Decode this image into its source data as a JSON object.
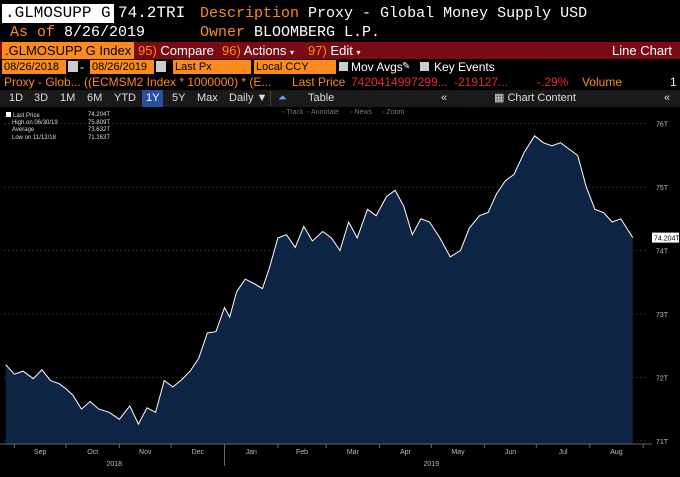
{
  "header": {
    "ticker": ".GLMOSUPP G",
    "last_value": "74.2TRI",
    "description_label": "Description",
    "description": "Proxy - Global Money Supply USD",
    "asof_label": "As of",
    "asof": "8/26/2019",
    "owner_label": "Owner",
    "owner": "BLOOMBERG L.P."
  },
  "toolbar": {
    "security": ".GLMOSUPP G Index",
    "compare_num": "95)",
    "compare": "Compare",
    "actions_num": "96)",
    "actions": "Actions",
    "edit_num": "97)",
    "edit": "Edit",
    "chart_type": "Line Chart"
  },
  "settings": {
    "start_date": "08/26/2018",
    "end_date": "08/26/2019",
    "price_field": "Last Px",
    "currency": "Local CCY",
    "mov_avgs": "Mov Avgs",
    "key_events": "Key Events"
  },
  "legend_row": {
    "name": "Proxy - Glob...",
    "formula": "((ECMSM2 Index * 1000000) * (E...",
    "last_price_label": "Last Price",
    "last_price": "7420414997299...",
    "change": "-219127...",
    "pct_change": "-.29%",
    "volume_label": "Volume",
    "volume": "1"
  },
  "periods": [
    "1D",
    "3D",
    "1M",
    "6M",
    "YTD",
    "1Y",
    "5Y",
    "Max"
  ],
  "selected_period": "1Y",
  "frequency": "Daily",
  "table_label": "Table",
  "chart_content_label": "Chart Content",
  "chart_tools": {
    "track": "Track",
    "annotate": "Annotate",
    "news": "News",
    "zoom": "Zoom"
  },
  "chart_legend": {
    "last_price_label": "Last Price",
    "last_price": "74.204T",
    "high_label": "High on 06/30/19",
    "high": "75.809T",
    "average_label": "Average",
    "average": "73.632T",
    "low_label": "Low on 11/12/18",
    "low": "71.263T"
  },
  "colors": {
    "orange": "#fb8b1e",
    "dark_red": "#7a0a14",
    "area_fill": "#0e2444",
    "line": "#ffffff"
  },
  "chart_data": {
    "type": "area",
    "series": [
      {
        "name": "Last Price",
        "x": [
          "2018-08-27",
          "2018-09-01",
          "2018-09-06",
          "2018-09-12",
          "2018-09-17",
          "2018-09-22",
          "2018-09-27",
          "2018-10-01",
          "2018-10-05",
          "2018-10-10",
          "2018-10-15",
          "2018-10-20",
          "2018-10-26",
          "2018-11-01",
          "2018-11-07",
          "2018-11-12",
          "2018-11-17",
          "2018-11-22",
          "2018-11-27",
          "2018-12-02",
          "2018-12-07",
          "2018-12-12",
          "2018-12-17",
          "2018-12-22",
          "2018-12-27",
          "2019-01-01",
          "2019-01-04",
          "2019-01-08",
          "2019-01-13",
          "2019-01-18",
          "2019-01-23",
          "2019-01-27",
          "2019-02-01",
          "2019-02-06",
          "2019-02-11",
          "2019-02-16",
          "2019-02-21",
          "2019-02-27",
          "2019-03-04",
          "2019-03-09",
          "2019-03-14",
          "2019-03-19",
          "2019-03-25",
          "2019-03-30",
          "2019-04-05",
          "2019-04-10",
          "2019-04-15",
          "2019-04-20",
          "2019-04-25",
          "2019-04-30",
          "2019-05-06",
          "2019-05-12",
          "2019-05-18",
          "2019-05-23",
          "2019-05-29",
          "2019-06-03",
          "2019-06-08",
          "2019-06-13",
          "2019-06-18",
          "2019-06-24",
          "2019-06-30",
          "2019-07-05",
          "2019-07-10",
          "2019-07-15",
          "2019-07-20",
          "2019-07-25",
          "2019-07-30",
          "2019-08-04",
          "2019-08-09",
          "2019-08-14",
          "2019-08-19",
          "2019-08-26"
        ],
        "values": [
          72.2,
          72.05,
          72.1,
          71.98,
          72.12,
          71.95,
          71.9,
          71.82,
          71.72,
          71.5,
          71.62,
          71.5,
          71.45,
          71.34,
          71.55,
          71.263,
          71.52,
          71.45,
          71.95,
          71.85,
          71.96,
          72.1,
          72.3,
          72.7,
          72.72,
          73.1,
          72.95,
          73.35,
          73.55,
          73.48,
          73.4,
          73.72,
          74.2,
          74.25,
          74.05,
          74.38,
          74.15,
          74.3,
          74.2,
          74.0,
          74.45,
          74.2,
          74.65,
          74.55,
          74.85,
          74.95,
          74.7,
          74.25,
          74.5,
          74.45,
          74.2,
          73.9,
          74.0,
          74.35,
          74.55,
          74.6,
          74.9,
          75.1,
          75.2,
          75.55,
          75.809,
          75.7,
          75.65,
          75.7,
          75.6,
          75.5,
          75.0,
          74.65,
          74.6,
          74.45,
          74.5,
          74.204
        ]
      }
    ],
    "xticks": [
      "Sep",
      "Oct",
      "Nov",
      "Dec",
      "Jan",
      "Feb",
      "Mar",
      "Apr",
      "May",
      "Jun",
      "Jul",
      "Aug"
    ],
    "year_labels": [
      "2018",
      "2019"
    ],
    "yticks": [
      "71T",
      "72T",
      "73T",
      "74T",
      "75T",
      "76T"
    ],
    "ylim": [
      70.95,
      76.2
    ],
    "last_label": "74.204T",
    "grid": true
  }
}
